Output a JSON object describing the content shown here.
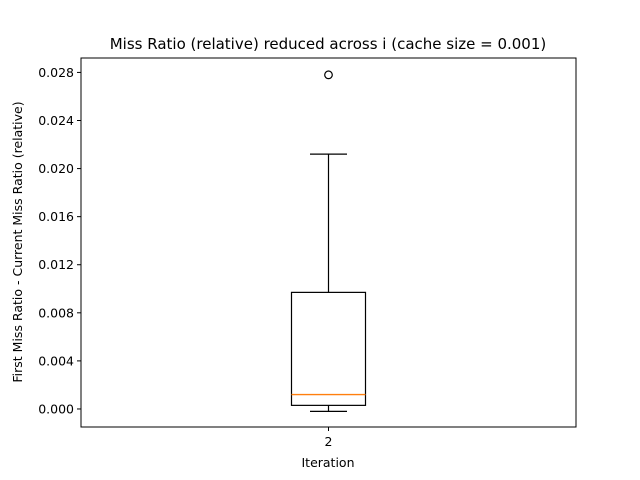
{
  "chart_data": {
    "type": "box",
    "title": "Miss Ratio (relative) reduced across i (cache size = 0.001)",
    "xlabel": "Iteration",
    "ylabel": "First Miss Ratio - Current Miss Ratio (relative)",
    "ylim": [
      -0.0015,
      0.0292
    ],
    "yticks": [
      0.0,
      0.004,
      0.008,
      0.012,
      0.016,
      0.02,
      0.024,
      0.028
    ],
    "ytick_labels": [
      "0.000",
      "0.004",
      "0.008",
      "0.012",
      "0.016",
      "0.020",
      "0.024",
      "0.028"
    ],
    "categories": [
      "2"
    ],
    "boxes": [
      {
        "category": "2",
        "whisker_low": -0.0002,
        "q1": 0.0003,
        "median": 0.0012,
        "q3": 0.0097,
        "whisker_high": 0.0212,
        "outliers": [
          0.0278
        ]
      }
    ],
    "grid": false,
    "colors": {
      "box": "#000000",
      "median": "#ff7f0e",
      "outlier": "#000000"
    }
  }
}
